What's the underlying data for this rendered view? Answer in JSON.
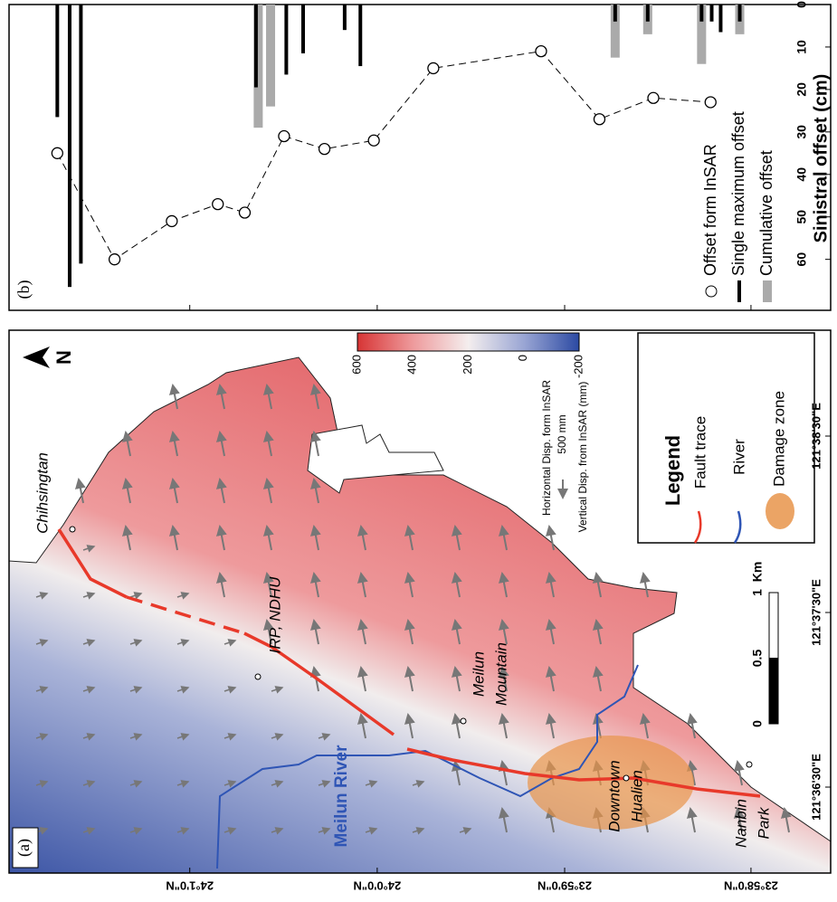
{
  "chart_data": {
    "type": "combo",
    "label": "(b)",
    "ylabel": "Sinistral offset (cm)",
    "xlim": [
      24.0328,
      23.9596
    ],
    "xticks": [
      {
        "value": 24.0167,
        "label": "24°1'0\"N"
      },
      {
        "value": 24.0,
        "label": "24°0'0\"N"
      },
      {
        "value": 23.9833,
        "label": "23°59'0\"N"
      },
      {
        "value": 23.9667,
        "label": "23°58'0\"N"
      }
    ],
    "ylim": [
      0,
      72
    ],
    "yticks": [
      0,
      10,
      20,
      30,
      40,
      50,
      60
    ],
    "series": [
      {
        "name": "Cumulative offset",
        "type": "bar",
        "color": "#aaaaaa",
        "x": [
          24.0106,
          24.0095,
          23.9788,
          23.9759,
          23.9711,
          23.9677
        ],
        "values": [
          29,
          24,
          12.5,
          7,
          14,
          7
        ]
      },
      {
        "name": "Single maximum offset",
        "type": "bar",
        "color": "#000000",
        "x": [
          24.0285,
          24.0274,
          24.0264,
          24.0108,
          24.0081,
          24.0066,
          24.0029,
          24.0015,
          23.9788,
          23.9759,
          23.9711,
          23.9702,
          23.9694,
          23.9677
        ],
        "values": [
          26.5,
          66.5,
          61,
          19.5,
          16.5,
          11.5,
          6,
          14.5,
          4,
          4,
          4,
          4,
          6.5,
          4
        ]
      },
      {
        "name": "Offset form InSAR",
        "type": "scatter",
        "color": "#000000",
        "x": [
          24.0285,
          24.0234,
          24.0183,
          24.0142,
          24.0118,
          24.0083,
          24.0047,
          24.0003,
          23.995,
          23.9854,
          23.9802,
          23.9754,
          23.9703
        ],
        "values": [
          35,
          60,
          51,
          47,
          49,
          31,
          34,
          32,
          15,
          11,
          27,
          22,
          23
        ]
      }
    ]
  },
  "panel_a": {
    "label": "(a)",
    "north": "N",
    "places": {
      "chihsingtan": "Chihsingtan",
      "irp": "IRP, NDHU",
      "mountain_1": "Meilun",
      "mountain_2": "Mountain",
      "river": "Meilun River",
      "downtown_1": "Downtown",
      "downtown_2": "Hualien",
      "nanbin_1": "Nanbin",
      "nanbin_2": "Park"
    },
    "lon_labels": [
      "121°38'30\"E",
      "121°37'30\"E",
      "121°36'30\"E"
    ],
    "colorbar": {
      "horizontal_title": "Horizontal Disp. form InSAR",
      "arrow_scale": "500 mm",
      "vertical_title": "Vertical Disp. from InSAR (mm)",
      "range": [
        -200,
        600
      ],
      "ticks": [
        600,
        400,
        200,
        0,
        -200
      ]
    },
    "legend": {
      "title": "Legend",
      "fault": "Fault trace",
      "river": "River",
      "damage": "Damage zone"
    },
    "scale_bar": {
      "ticks": [
        0,
        0.5,
        1
      ],
      "unit": "Km"
    }
  }
}
